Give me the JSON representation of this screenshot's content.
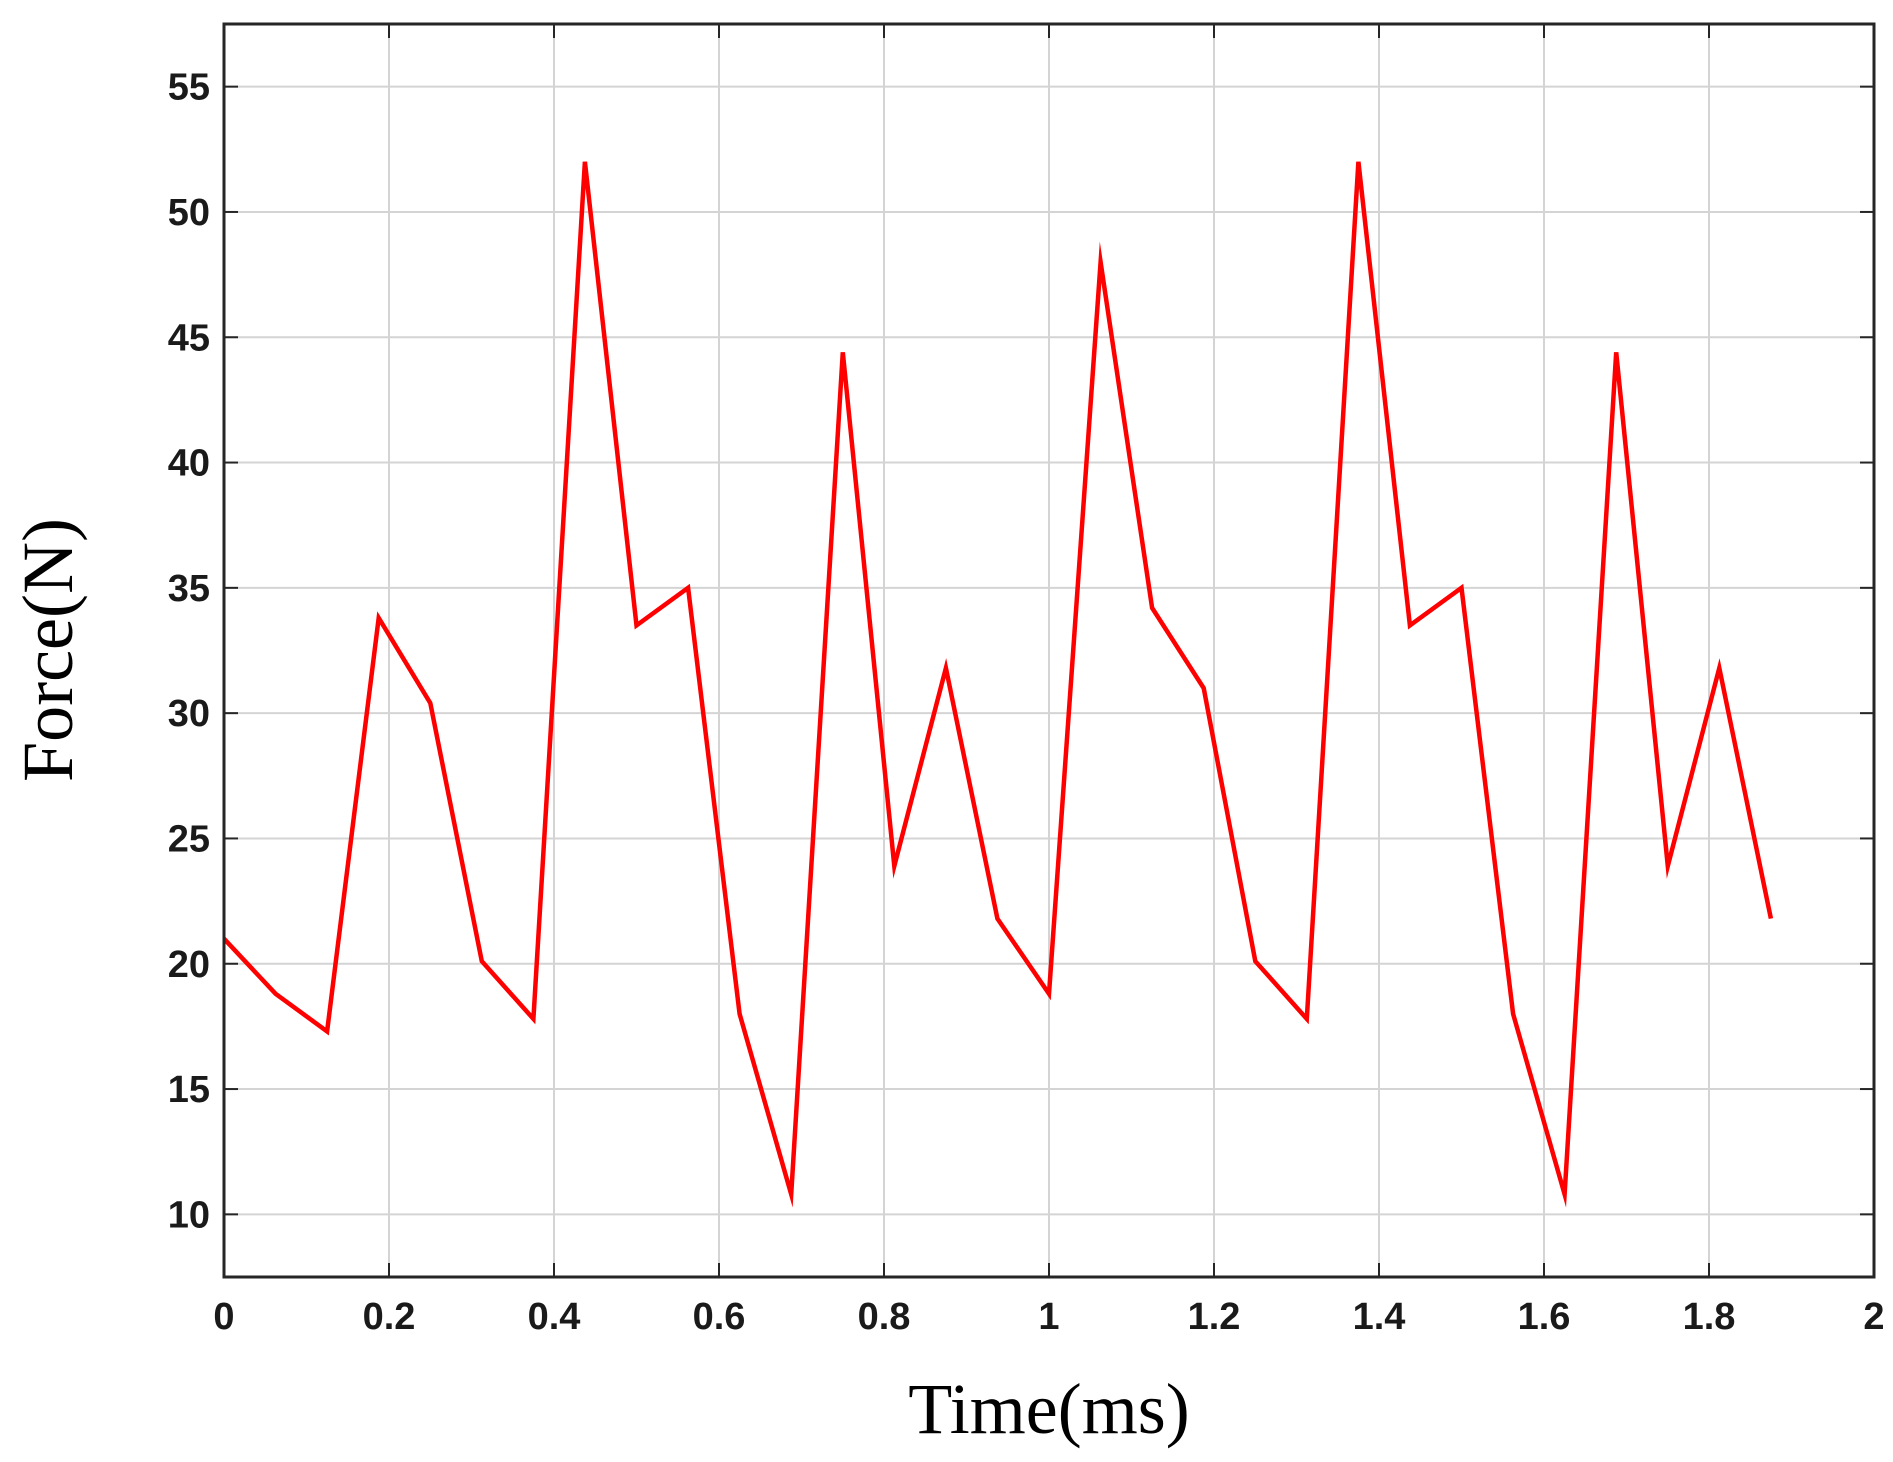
{
  "chart_data": {
    "type": "line",
    "title": "",
    "xlabel": "Time(ms)",
    "ylabel": "Force(N)",
    "xlim": [
      0,
      2
    ],
    "ylim": [
      7.5,
      57.5
    ],
    "xticks": [
      "0",
      "0.2",
      "0.4",
      "0.6",
      "0.8",
      "1",
      "1.2",
      "1.4",
      "1.6",
      "1.8",
      "2"
    ],
    "yticks": [
      "10",
      "15",
      "20",
      "25",
      "30",
      "35",
      "40",
      "45",
      "50",
      "55"
    ],
    "grid": true,
    "series": [
      {
        "color": "#ff0000",
        "x": [
          0,
          0.0625,
          0.125,
          0.1875,
          0.25,
          0.3125,
          0.375,
          0.4375,
          0.5,
          0.5625,
          0.625,
          0.6875,
          0.75,
          0.8125,
          0.875,
          0.9375,
          1.0,
          1.0625,
          1.125,
          1.1875,
          1.25,
          1.3125,
          1.375,
          1.4375,
          1.5,
          1.5625,
          1.625,
          1.6875,
          1.75,
          1.8125,
          1.875
        ],
        "y": [
          21.0,
          18.8,
          17.3,
          33.8,
          30.4,
          20.1,
          17.8,
          52.0,
          33.5,
          35.0,
          18.0,
          10.8,
          44.4,
          23.9,
          31.8,
          21.8,
          18.8,
          48.0,
          34.2,
          31.0,
          20.1,
          17.8,
          52.0,
          33.5,
          35.0,
          18.0,
          10.8,
          44.4,
          23.9,
          31.8,
          21.8
        ]
      }
    ]
  }
}
